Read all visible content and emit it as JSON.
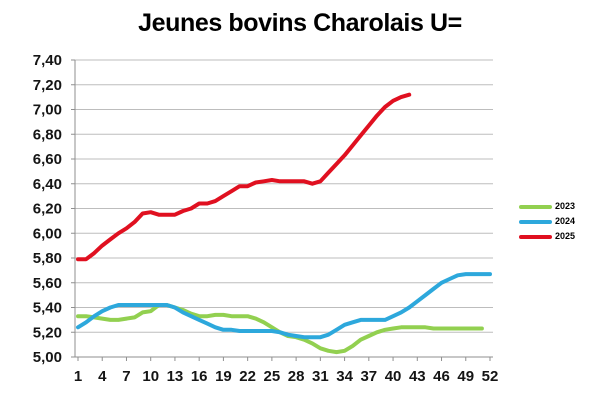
{
  "title": "Jeunes bovins Charolais U=",
  "legend": {
    "position": "right",
    "items": [
      {
        "label": "2023",
        "color": "#92D050"
      },
      {
        "label": "2024",
        "color": "#2DA8DC"
      },
      {
        "label": "2025",
        "color": "#E01020"
      }
    ]
  },
  "chart_data": {
    "type": "line",
    "title": "Jeunes bovins Charolais U=",
    "xlabel": "",
    "ylabel": "",
    "x_unit": "week",
    "x_range": [
      1,
      52
    ],
    "x_label_ticks": [
      1,
      4,
      7,
      10,
      13,
      16,
      19,
      22,
      25,
      28,
      31,
      34,
      37,
      40,
      43,
      46,
      49,
      52
    ],
    "ylim": [
      5.0,
      7.4
    ],
    "y_ticks": [
      7.4,
      7.2,
      7.0,
      6.8,
      6.6,
      6.4,
      6.2,
      6.0,
      5.8,
      5.6,
      5.4,
      5.2,
      5.0
    ],
    "decimal_separator": ",",
    "grid": true,
    "legend_position": "right",
    "colors": {
      "gridline": "#BDBDBD",
      "axis": "#8F8F8F",
      "background": "#FFFFFF",
      "title_text": "#000000"
    },
    "series": [
      {
        "name": "2023",
        "color": "#92D050",
        "start_week": 1,
        "values": [
          5.33,
          5.33,
          5.32,
          5.31,
          5.3,
          5.3,
          5.31,
          5.32,
          5.36,
          5.37,
          5.42,
          5.42,
          5.4,
          5.38,
          5.35,
          5.33,
          5.33,
          5.34,
          5.34,
          5.33,
          5.33,
          5.33,
          5.31,
          5.28,
          5.24,
          5.2,
          5.17,
          5.16,
          5.14,
          5.11,
          5.07,
          5.05,
          5.04,
          5.05,
          5.09,
          5.14,
          5.17,
          5.2,
          5.22,
          5.23,
          5.24,
          5.24,
          5.24,
          5.24,
          5.23,
          5.23,
          5.23,
          5.23,
          5.23,
          5.23,
          5.23
        ]
      },
      {
        "name": "2024",
        "color": "#2DA8DC",
        "start_week": 1,
        "values": [
          5.24,
          5.28,
          5.33,
          5.37,
          5.4,
          5.42,
          5.42,
          5.42,
          5.42,
          5.42,
          5.42,
          5.42,
          5.4,
          5.36,
          5.33,
          5.3,
          5.27,
          5.24,
          5.22,
          5.22,
          5.21,
          5.21,
          5.21,
          5.21,
          5.21,
          5.2,
          5.18,
          5.17,
          5.16,
          5.16,
          5.16,
          5.18,
          5.22,
          5.26,
          5.28,
          5.3,
          5.3,
          5.3,
          5.3,
          5.33,
          5.36,
          5.4,
          5.45,
          5.5,
          5.55,
          5.6,
          5.63,
          5.66,
          5.67,
          5.67,
          5.67,
          5.67
        ]
      },
      {
        "name": "2025",
        "color": "#E01020",
        "start_week": 1,
        "values": [
          5.79,
          5.79,
          5.84,
          5.9,
          5.95,
          6.0,
          6.04,
          6.09,
          6.16,
          6.17,
          6.15,
          6.15,
          6.15,
          6.18,
          6.2,
          6.24,
          6.24,
          6.26,
          6.3,
          6.34,
          6.38,
          6.38,
          6.41,
          6.42,
          6.43,
          6.42,
          6.42,
          6.42,
          6.42,
          6.4,
          6.42,
          6.49,
          6.56,
          6.63,
          6.71,
          6.79,
          6.87,
          6.95,
          7.02,
          7.07,
          7.1,
          7.12
        ]
      }
    ]
  }
}
